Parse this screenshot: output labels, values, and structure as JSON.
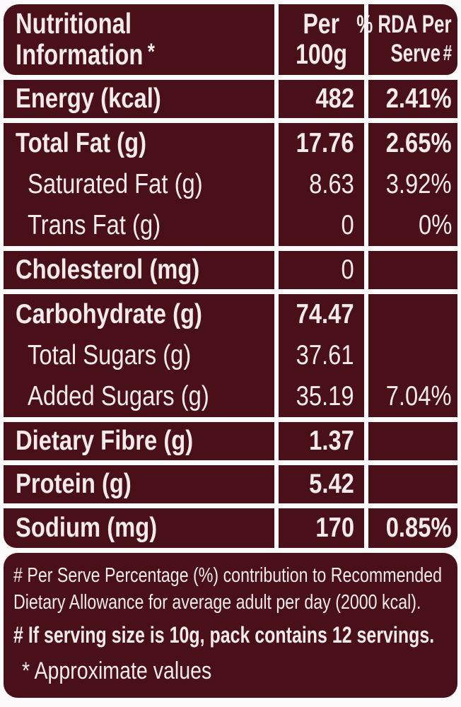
{
  "colors": {
    "maroon": "#4a1019",
    "page": "#fcfafa",
    "text": "#f2ebea"
  },
  "table": {
    "header": {
      "col1": {
        "line1": "Nutritional",
        "line2": "Information",
        "note_symbol": "*"
      },
      "col2": {
        "line1": "Per",
        "line2": "100g"
      },
      "col3": {
        "line1": "% RDA Per",
        "line2": "Serve",
        "note_symbol": "#"
      }
    },
    "groups": [
      {
        "rows": [
          {
            "label": "Energy (kcal)",
            "value": "482",
            "rda": "2.41%",
            "bold": true
          }
        ]
      },
      {
        "rows": [
          {
            "label": "Total Fat (g)",
            "value": "17.76",
            "rda": "2.65%",
            "bold": true
          },
          {
            "label": "Saturated Fat (g)",
            "value": "8.63",
            "rda": "3.92%",
            "bold": false,
            "indent": true
          },
          {
            "label": "Trans Fat (g)",
            "value": "0",
            "rda": "0%",
            "bold": false,
            "indent": true
          }
        ]
      },
      {
        "rows": [
          {
            "label": "Cholesterol (mg)",
            "value": "0",
            "rda": "",
            "bold": true,
            "value_bold": false
          }
        ]
      },
      {
        "rows": [
          {
            "label": "Carbohydrate (g)",
            "value": "74.47",
            "rda": "",
            "bold": true
          },
          {
            "label": "Total Sugars (g)",
            "value": "37.61",
            "rda": "",
            "bold": false,
            "indent": true
          },
          {
            "label": "Added Sugars (g)",
            "value": "35.19",
            "rda": "7.04%",
            "bold": false,
            "indent": true
          }
        ]
      },
      {
        "rows": [
          {
            "label": "Dietary Fibre (g)",
            "value": "1.37",
            "rda": "",
            "bold": true
          }
        ]
      },
      {
        "rows": [
          {
            "label": "Protein (g)",
            "value": "5.42",
            "rda": "",
            "bold": true
          }
        ]
      },
      {
        "last": true,
        "rows": [
          {
            "label": "Sodium (mg)",
            "value": "170",
            "rda": "0.85%",
            "bold": true
          }
        ]
      }
    ],
    "footnotes": {
      "rda_note_line1": "# Per Serve Percentage (%) contribution to Recommended",
      "rda_note_line2": "Dietary Allowance for average adult per day (2000 kcal).",
      "serving_note": "# If serving size is 10g, pack contains 12 servings.",
      "approx_note": "* Approximate values"
    }
  }
}
